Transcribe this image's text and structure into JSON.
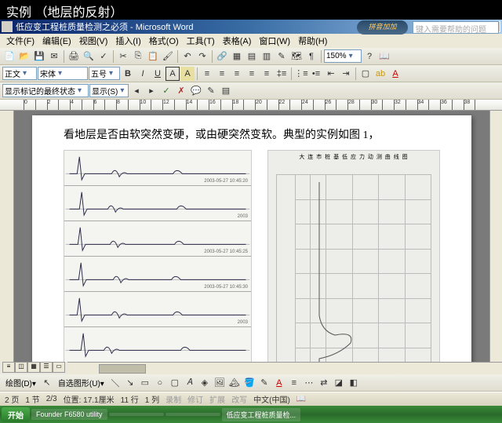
{
  "slide_title": "实例  （地层的反射）",
  "window": {
    "title": "低应变工程桩质量检测之必须 - Microsoft Word",
    "help_placeholder": "键入需要帮助的问题",
    "banner": "拼音加加"
  },
  "menu": [
    "文件(F)",
    "编辑(E)",
    "视图(V)",
    "插入(I)",
    "格式(O)",
    "工具(T)",
    "表格(A)",
    "窗口(W)",
    "帮助(H)"
  ],
  "toolbar1": {
    "zoom": "150%"
  },
  "toolbar2": {
    "style": "正文",
    "font": "宋体",
    "size": "五号"
  },
  "toolbar3": {
    "track": "显示标记的最终状态",
    "show": "显示(S)"
  },
  "document": {
    "main_text": "看地层是否由软突然变硬，或由硬突然变软。典型的实例如图 1，",
    "right_title": "大 连 市 桩 基 低 应 力 动 测 曲 线 图",
    "waveforms": [
      {
        "label": "2003-05-27 10:45:20",
        "peaks": [
          15,
          60,
          140
        ]
      },
      {
        "label": "2003",
        "peaks": [
          18,
          55,
          145
        ]
      },
      {
        "label": "2003-05-27 10:45:25",
        "peaks": [
          16,
          58,
          142
        ]
      },
      {
        "label": "2003-05-27 10:45:30",
        "peaks": [
          17,
          62,
          138
        ]
      },
      {
        "label": "2003",
        "peaks": [
          15,
          60,
          140
        ]
      },
      {
        "label": "",
        "peaks": [
          20,
          50,
          150
        ]
      }
    ],
    "chart_colors": {
      "stroke": "#2a2a4a",
      "bg": "#f4f4f0",
      "grid": "#bbbbbb"
    }
  },
  "status": {
    "page": "2 页",
    "section": "1 节",
    "pages": "2/3",
    "position": "位置: 17.1厘米",
    "line": "11 行",
    "col": "1 列",
    "lang": "中文(中国)"
  },
  "taskbar": {
    "start": "开始",
    "items": [
      "Founder F6580 utility",
      "",
      "",
      "低应变工程桩质量检..."
    ]
  }
}
